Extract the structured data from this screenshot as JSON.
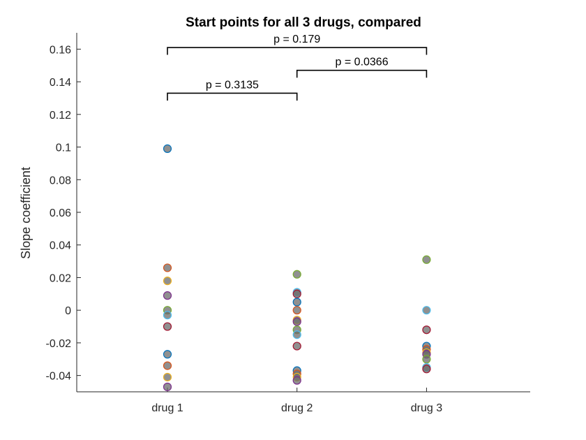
{
  "chart_data": {
    "type": "scatter",
    "title": "Start points for all 3 drugs, compared",
    "xlabel": "",
    "ylabel": "Slope coefficient",
    "categories": [
      "drug 1",
      "drug 2",
      "drug 3"
    ],
    "xlim": [
      0.3,
      3.8
    ],
    "ylim": [
      -0.05,
      0.17
    ],
    "yticks": [
      -0.04,
      -0.02,
      0,
      0.02,
      0.04,
      0.06,
      0.08,
      0.1,
      0.12,
      0.14,
      0.16
    ],
    "ytick_labels": [
      "-0.04",
      "-0.02",
      "0",
      "0.02",
      "0.04",
      "0.06",
      "0.08",
      "0.1",
      "0.12",
      "0.14",
      "0.16"
    ],
    "grid": false,
    "marker_fill": "#6b6b6b",
    "marker_alpha": 0.75,
    "edge_palette": [
      "#0072BD",
      "#D95319",
      "#EDB120",
      "#7E2F8E",
      "#77AC30",
      "#4DBEEE",
      "#A2142F"
    ],
    "series": [
      {
        "x": 1,
        "values": [
          0.099,
          0.026,
          0.018,
          0.009,
          0.0,
          -0.003,
          -0.01,
          -0.027,
          -0.034,
          -0.041,
          -0.047
        ]
      },
      {
        "x": 2,
        "values": [
          0.022,
          0.011,
          0.01,
          0.005,
          0.0,
          -0.006,
          -0.007,
          -0.012,
          -0.015,
          -0.022,
          -0.037,
          -0.039,
          -0.041,
          -0.043
        ]
      },
      {
        "x": 3,
        "values": [
          0.031,
          0.0,
          -0.012,
          -0.022,
          -0.024,
          -0.026,
          -0.027,
          -0.03,
          -0.035,
          -0.036
        ]
      }
    ],
    "annotations": [
      {
        "from": 1,
        "to": 2,
        "y": 0.133,
        "drop": 0.0045,
        "label": "p = 0.3135"
      },
      {
        "from": 2,
        "to": 3,
        "y": 0.147,
        "drop": 0.0045,
        "label": "p = 0.0366"
      },
      {
        "from": 1,
        "to": 3,
        "y": 0.161,
        "drop": 0.0045,
        "label": "p = 0.179"
      }
    ]
  }
}
